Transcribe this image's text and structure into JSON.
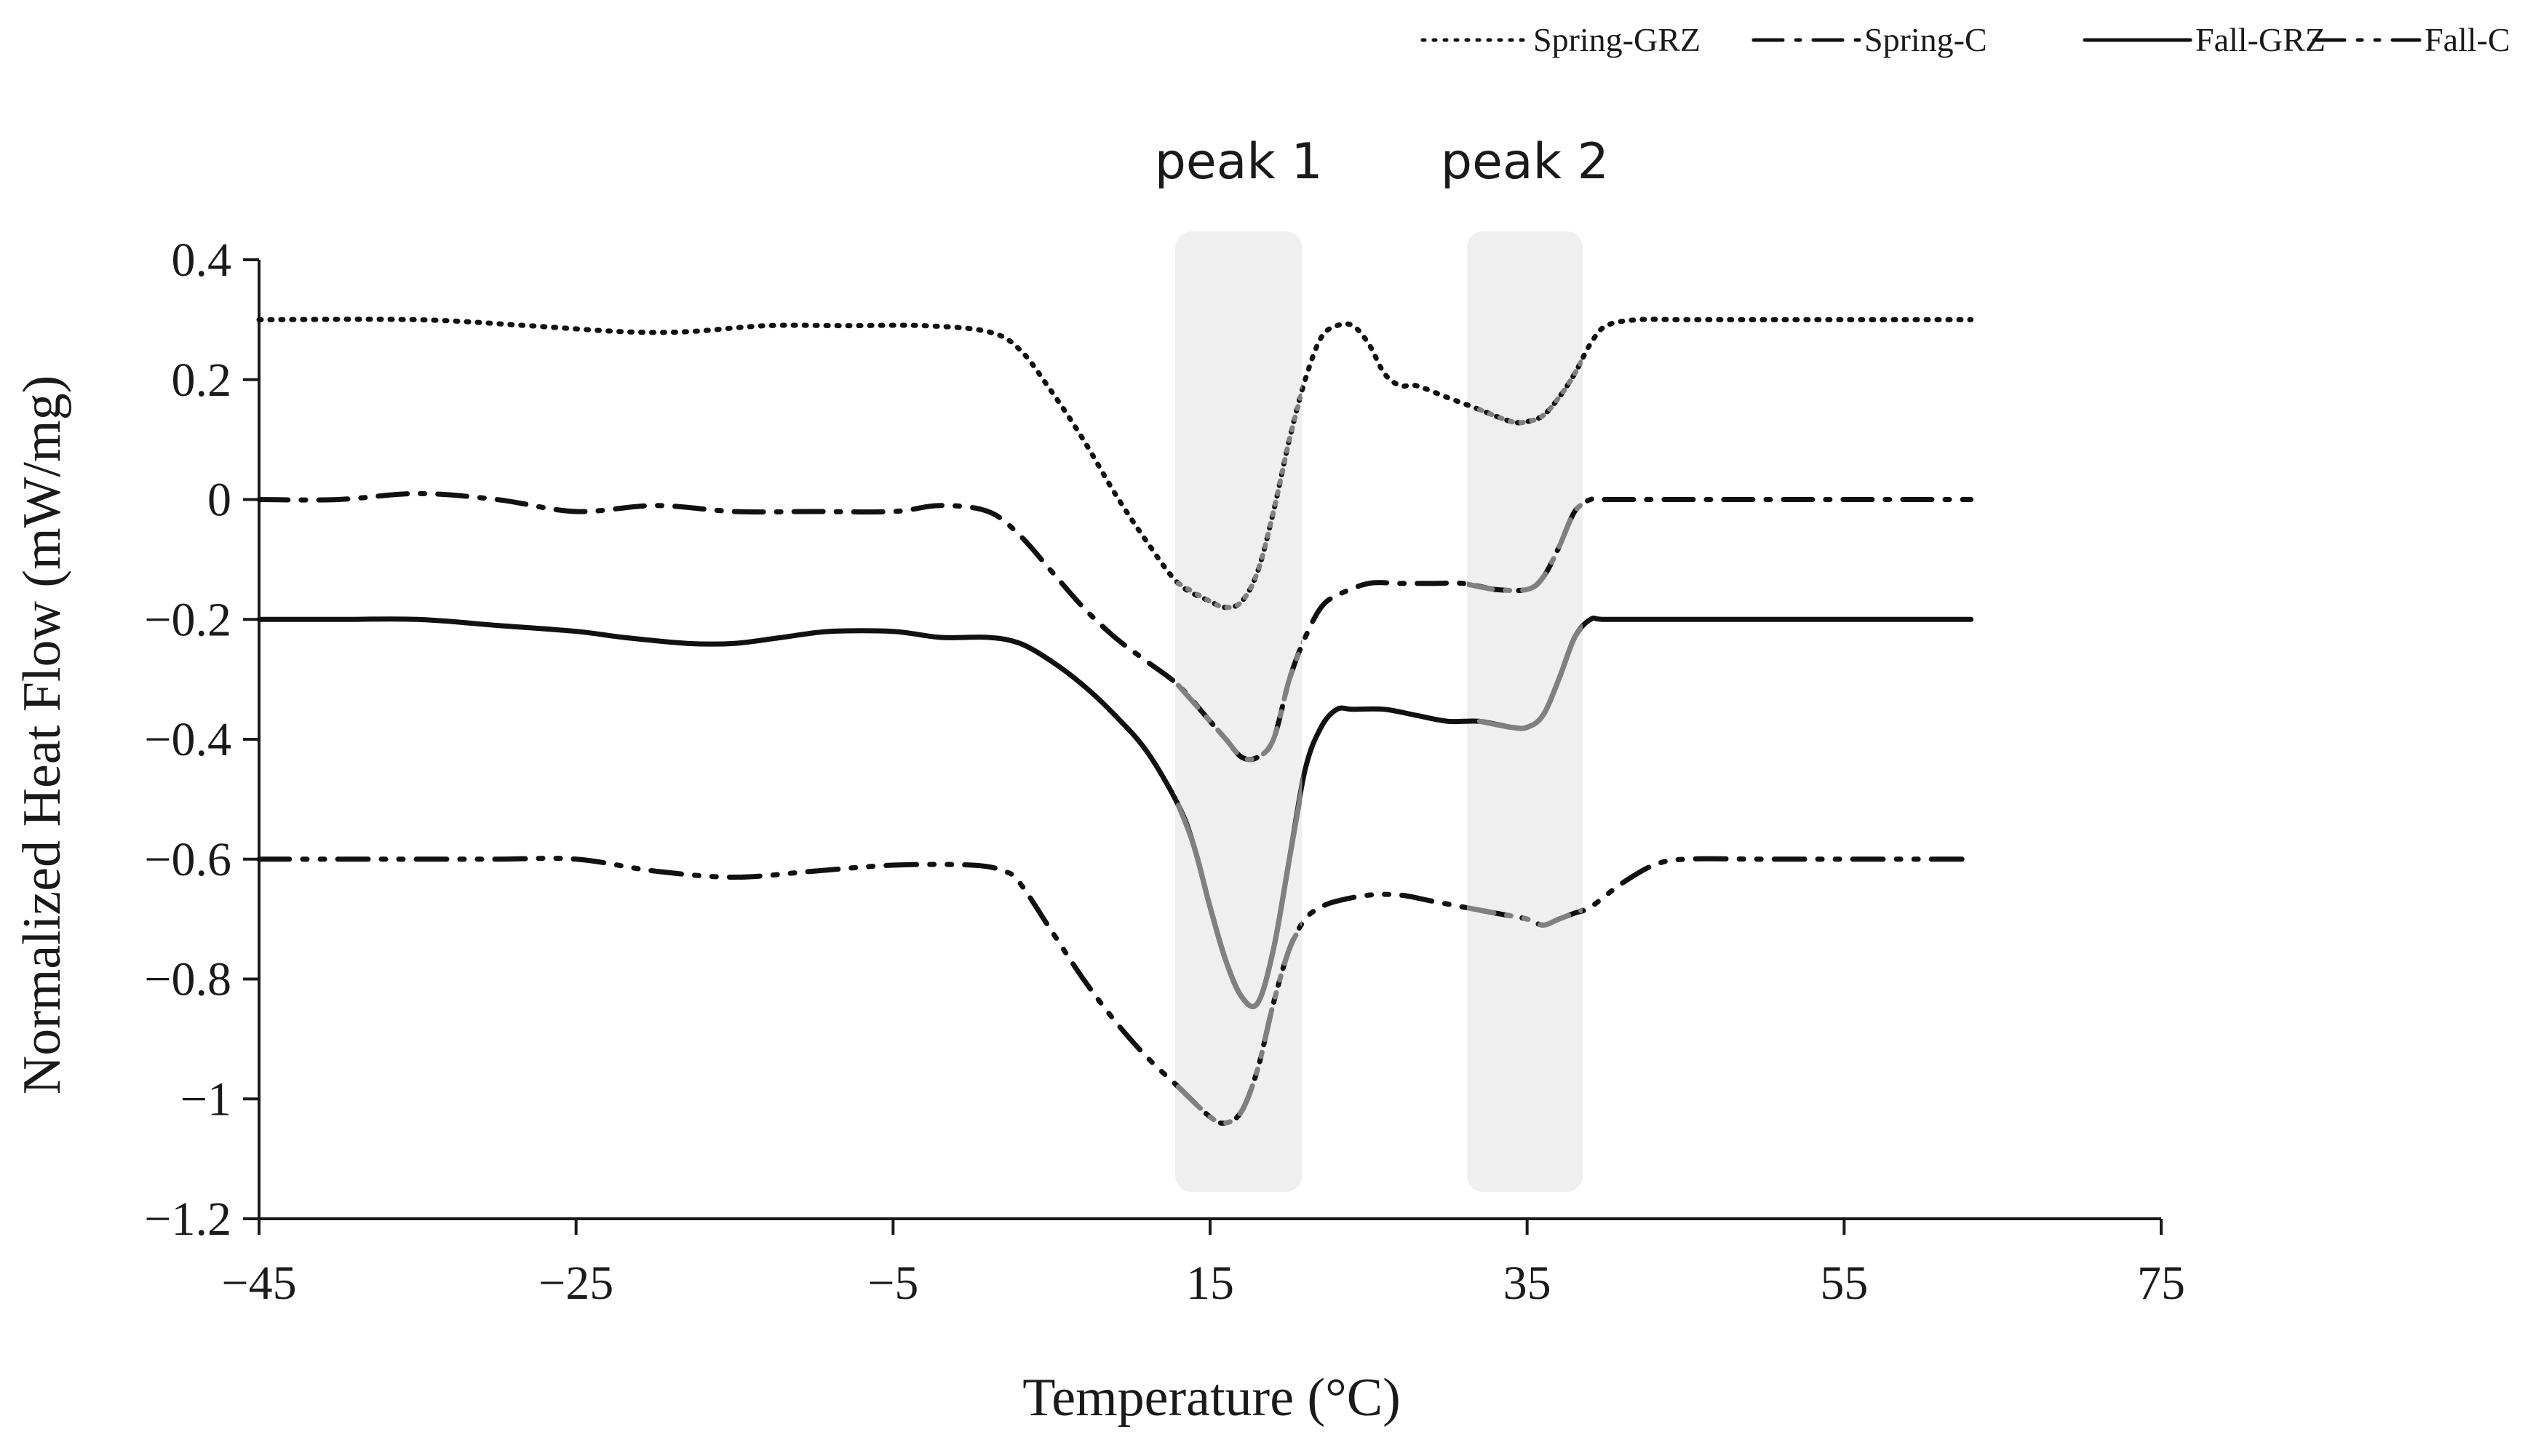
{
  "chart_data": {
    "type": "line",
    "title": "",
    "xlabel": "Temperature (°C)",
    "ylabel": "Normalized Heat Flow (mW/mg)",
    "xlim": [
      -45,
      75
    ],
    "ylim": [
      -1.2,
      0.4
    ],
    "xticks": [
      -45,
      -25,
      -5,
      15,
      35,
      55,
      75
    ],
    "xtick_labels": [
      "−45",
      "−25",
      "−5",
      "15",
      "35",
      "55",
      "75"
    ],
    "yticks": [
      0.4,
      0.2,
      0,
      -0.2,
      -0.4,
      -0.6,
      -0.8,
      -1,
      -1.2
    ],
    "ytick_labels": [
      "0.4",
      "0.2",
      "0",
      "−0.2",
      "−0.4",
      "−0.6",
      "−0.8",
      "−1",
      "−1.2"
    ],
    "grid": false,
    "legend_position": "top-right",
    "highlight_bands": [
      {
        "label": "peak 1",
        "x_range": [
          12.8,
          20.8
        ],
        "color": "#efefef"
      },
      {
        "label": "peak 2",
        "x_range": [
          31.2,
          38.5
        ],
        "color": "#efefef"
      }
    ],
    "series": [
      {
        "name": "Spring-GRZ",
        "style": "dotted",
        "x": [
          -45,
          -35,
          -28,
          -22,
          -18,
          -13,
          -8,
          -3,
          1,
          3,
          5,
          7,
          9,
          11,
          13,
          15,
          16,
          17,
          18,
          19,
          20,
          21,
          22,
          23,
          24,
          25,
          26,
          27,
          28,
          30,
          32,
          34,
          35,
          36,
          37,
          38,
          39,
          40,
          42,
          45,
          50,
          55,
          63
        ],
        "y": [
          0.3,
          0.3,
          0.29,
          0.28,
          0.28,
          0.29,
          0.29,
          0.29,
          0.28,
          0.25,
          0.18,
          0.1,
          0.01,
          -0.07,
          -0.14,
          -0.17,
          -0.18,
          -0.17,
          -0.12,
          -0.02,
          0.1,
          0.2,
          0.27,
          0.29,
          0.29,
          0.26,
          0.21,
          0.19,
          0.19,
          0.17,
          0.15,
          0.13,
          0.13,
          0.14,
          0.17,
          0.21,
          0.26,
          0.29,
          0.3,
          0.3,
          0.3,
          0.3,
          0.3
        ]
      },
      {
        "name": "Spring-C",
        "style": "dash-dot",
        "x": [
          -45,
          -40,
          -35,
          -30,
          -25,
          -20,
          -15,
          -10,
          -5,
          -2,
          1,
          3,
          5,
          7,
          9,
          11,
          13,
          15,
          16,
          17,
          18,
          19,
          20,
          21,
          22,
          23,
          25,
          27,
          29,
          31,
          33,
          35,
          36,
          37,
          38,
          39,
          40,
          45,
          50,
          55,
          63
        ],
        "y": [
          0,
          0,
          0.01,
          0,
          -0.02,
          -0.01,
          -0.02,
          -0.02,
          -0.02,
          -0.01,
          -0.02,
          -0.06,
          -0.12,
          -0.18,
          -0.23,
          -0.27,
          -0.31,
          -0.37,
          -0.4,
          -0.43,
          -0.43,
          -0.4,
          -0.3,
          -0.23,
          -0.18,
          -0.16,
          -0.14,
          -0.14,
          -0.14,
          -0.14,
          -0.15,
          -0.15,
          -0.13,
          -0.08,
          -0.02,
          0,
          0,
          0,
          0,
          0,
          0
        ]
      },
      {
        "name": "Fall-GRZ",
        "style": "solid",
        "x": [
          -45,
          -40,
          -35,
          -30,
          -25,
          -22,
          -18,
          -15,
          -12,
          -9,
          -5,
          -2,
          1,
          3,
          5,
          7,
          9,
          11,
          13,
          14,
          15,
          16,
          17,
          18,
          19,
          20,
          21,
          22,
          23,
          24,
          26,
          28,
          30,
          32,
          34,
          35,
          36,
          37,
          38,
          39,
          40,
          45,
          50,
          55,
          63
        ],
        "y": [
          -0.2,
          -0.2,
          -0.2,
          -0.21,
          -0.22,
          -0.23,
          -0.24,
          -0.24,
          -0.23,
          -0.22,
          -0.22,
          -0.23,
          -0.23,
          -0.24,
          -0.27,
          -0.31,
          -0.36,
          -0.42,
          -0.51,
          -0.58,
          -0.68,
          -0.77,
          -0.83,
          -0.84,
          -0.75,
          -0.6,
          -0.45,
          -0.38,
          -0.35,
          -0.35,
          -0.35,
          -0.36,
          -0.37,
          -0.37,
          -0.38,
          -0.38,
          -0.36,
          -0.3,
          -0.23,
          -0.2,
          -0.2,
          -0.2,
          -0.2,
          -0.2,
          -0.2
        ]
      },
      {
        "name": "Fall-C",
        "style": "dash-dot-dot",
        "x": [
          -45,
          -40,
          -35,
          -30,
          -25,
          -20,
          -15,
          -10,
          -5,
          0,
          2,
          3,
          5,
          7,
          9,
          11,
          13,
          15,
          16,
          17,
          18,
          19,
          20,
          21,
          22,
          23,
          25,
          27,
          29,
          31,
          33,
          35,
          36,
          37,
          38,
          39,
          41,
          43,
          45,
          50,
          55,
          63
        ],
        "y": [
          -0.6,
          -0.6,
          -0.6,
          -0.6,
          -0.6,
          -0.62,
          -0.63,
          -0.62,
          -0.61,
          -0.61,
          -0.62,
          -0.64,
          -0.72,
          -0.8,
          -0.87,
          -0.93,
          -0.98,
          -1.03,
          -1.04,
          -1.02,
          -0.95,
          -0.84,
          -0.75,
          -0.7,
          -0.68,
          -0.67,
          -0.66,
          -0.66,
          -0.67,
          -0.68,
          -0.69,
          -0.7,
          -0.71,
          -0.7,
          -0.69,
          -0.68,
          -0.64,
          -0.61,
          -0.6,
          -0.6,
          -0.6,
          -0.6
        ]
      }
    ]
  }
}
